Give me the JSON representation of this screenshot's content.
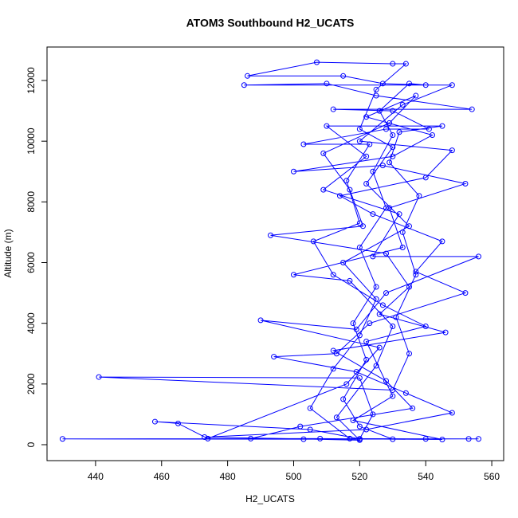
{
  "chart_data": {
    "type": "line",
    "title": "ATOM3 Southbound H2_UCATS",
    "x_label": "H2_UCATS",
    "y_label": "Altitude (m)",
    "color": "#0000ff",
    "markers": true,
    "x": [
      530,
      520,
      515,
      522,
      518,
      525,
      520,
      528,
      524,
      530,
      526,
      535,
      540,
      527,
      515,
      486,
      507,
      530,
      534,
      525,
      520,
      530,
      522,
      535,
      515,
      525,
      520,
      512,
      505,
      517,
      540,
      553,
      503,
      430,
      508,
      520,
      524,
      520,
      441,
      530,
      535,
      531,
      537,
      533,
      538,
      529,
      532,
      545,
      510,
      522,
      509,
      532,
      524,
      556,
      528,
      519,
      490,
      526,
      516,
      474,
      465,
      458,
      505,
      520,
      545,
      518,
      530,
      522,
      540,
      527,
      512,
      506,
      520,
      516,
      523,
      503,
      528,
      541,
      530,
      512,
      554,
      525,
      510,
      485,
      548,
      533,
      520,
      548,
      540,
      514,
      524,
      545,
      537,
      552,
      523,
      513,
      494,
      519,
      534,
      548,
      522,
      473,
      520,
      513,
      525,
      530,
      517,
      500,
      533,
      529,
      552,
      527,
      500,
      530,
      542,
      522,
      537,
      529,
      509,
      517,
      521,
      493,
      528,
      535,
      526,
      546,
      512,
      528,
      536,
      502,
      487,
      556
    ],
    "values": [
      180,
      600,
      1500,
      2800,
      4000,
      5200,
      6500,
      7800,
      9000,
      10200,
      11000,
      11900,
      11850,
      11900,
      12150,
      12150,
      12600,
      12550,
      12550,
      11700,
      10400,
      9800,
      8600,
      7200,
      6000,
      4800,
      3600,
      2500,
      1200,
      200,
      190,
      190,
      180,
      190,
      200,
      190,
      1000,
      2200,
      2230,
      1800,
      3000,
      4200,
      5600,
      7000,
      8200,
      9300,
      10300,
      10500,
      10500,
      9500,
      8400,
      7600,
      6200,
      6200,
      5000,
      3800,
      4100,
      3200,
      2000,
      200,
      700,
      760,
      500,
      190,
      170,
      800,
      1600,
      3400,
      3900,
      4600,
      5600,
      6700,
      7300,
      8700,
      9900,
      9900,
      10400,
      10400,
      11000,
      11050,
      11050,
      11500,
      11900,
      11850,
      11850,
      11200,
      10000,
      9700,
      8800,
      8200,
      7600,
      6700,
      5700,
      5000,
      4000,
      3000,
      2900,
      2400,
      1700,
      1050,
      500,
      250,
      150,
      900,
      2600,
      3900,
      5400,
      5600,
      6500,
      7800,
      8600,
      9200,
      9000,
      9500,
      10200,
      10800,
      11500,
      10600,
      9600,
      8400,
      7200,
      6900,
      6300,
      5200,
      4300,
      3700,
      3100,
      2100,
      1200,
      600,
      200,
      190
    ],
    "xlim": [
      425.3,
      563.6
    ],
    "ylim": [
      -525,
      13103
    ],
    "xticks": [
      440,
      460,
      480,
      500,
      520,
      540,
      560
    ],
    "yticks": [
      0,
      2000,
      4000,
      6000,
      8000,
      10000,
      12000
    ]
  }
}
